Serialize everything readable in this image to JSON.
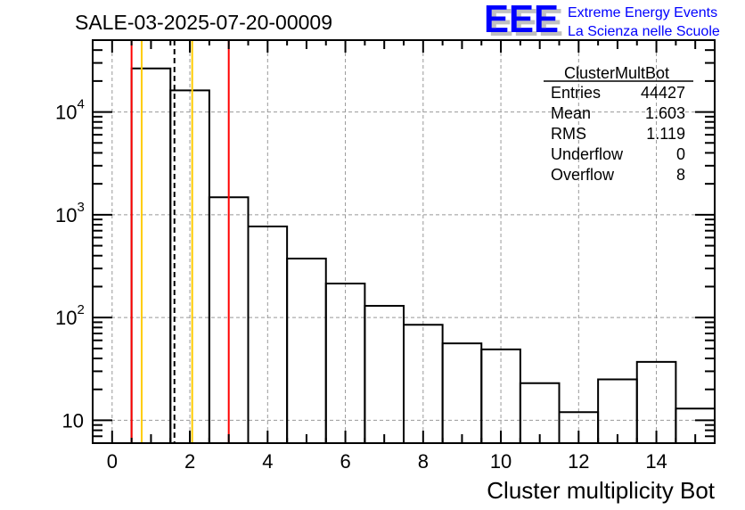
{
  "title": "SALE-03-2025-07-20-00009",
  "logo": {
    "mark": "EEE",
    "line1": "Extreme Energy Events",
    "line2": "La Scienza nelle Scuole",
    "color": "#0000ff"
  },
  "stats": {
    "name": "ClusterMultBot",
    "rows": [
      {
        "label": "Entries",
        "value": "44427"
      },
      {
        "label": "Mean",
        "value": "1.603"
      },
      {
        "label": "RMS",
        "value": "1.119"
      },
      {
        "label": "Underflow",
        "value": "0"
      },
      {
        "label": "Overflow",
        "value": "8"
      }
    ]
  },
  "chart_data": {
    "type": "bar",
    "style": "step-histogram",
    "title": "SALE-03-2025-07-20-00009",
    "xlabel": "Cluster multiplicity Bot",
    "ylabel": "",
    "xlim": [
      -0.5,
      15.5
    ],
    "ylim": [
      6,
      50000
    ],
    "yscale": "log",
    "grid": true,
    "bin_edges": [
      -0.5,
      0.5,
      1.5,
      2.5,
      3.5,
      4.5,
      5.5,
      6.5,
      7.5,
      8.5,
      9.5,
      10.5,
      11.5,
      12.5,
      13.5,
      14.5,
      15.5
    ],
    "values": [
      0,
      26500,
      16200,
      1480,
      770,
      375,
      214,
      130,
      85,
      56,
      49,
      23,
      12,
      25,
      37,
      13
    ],
    "x_ticks": [
      0,
      2,
      4,
      6,
      8,
      10,
      12,
      14
    ],
    "x_tick_labels": [
      "0",
      "2",
      "4",
      "6",
      "8",
      "10",
      "12",
      "14"
    ],
    "y_ticks": [
      10,
      100,
      1000,
      10000
    ],
    "y_tick_labels": [
      {
        "base": "10",
        "exp": ""
      },
      {
        "base": "10",
        "exp": "2"
      },
      {
        "base": "10",
        "exp": "3"
      },
      {
        "base": "10",
        "exp": "4"
      }
    ],
    "markers": [
      {
        "x": 0.5,
        "color": "#ff0000",
        "style": "solid"
      },
      {
        "x": 0.76,
        "color": "#ffcc00",
        "style": "solid"
      },
      {
        "x": 1.603,
        "color": "#000000",
        "style": "dashed"
      },
      {
        "x": 2.06,
        "color": "#ffcc00",
        "style": "solid"
      },
      {
        "x": 3.0,
        "color": "#ff0000",
        "style": "solid"
      }
    ]
  }
}
